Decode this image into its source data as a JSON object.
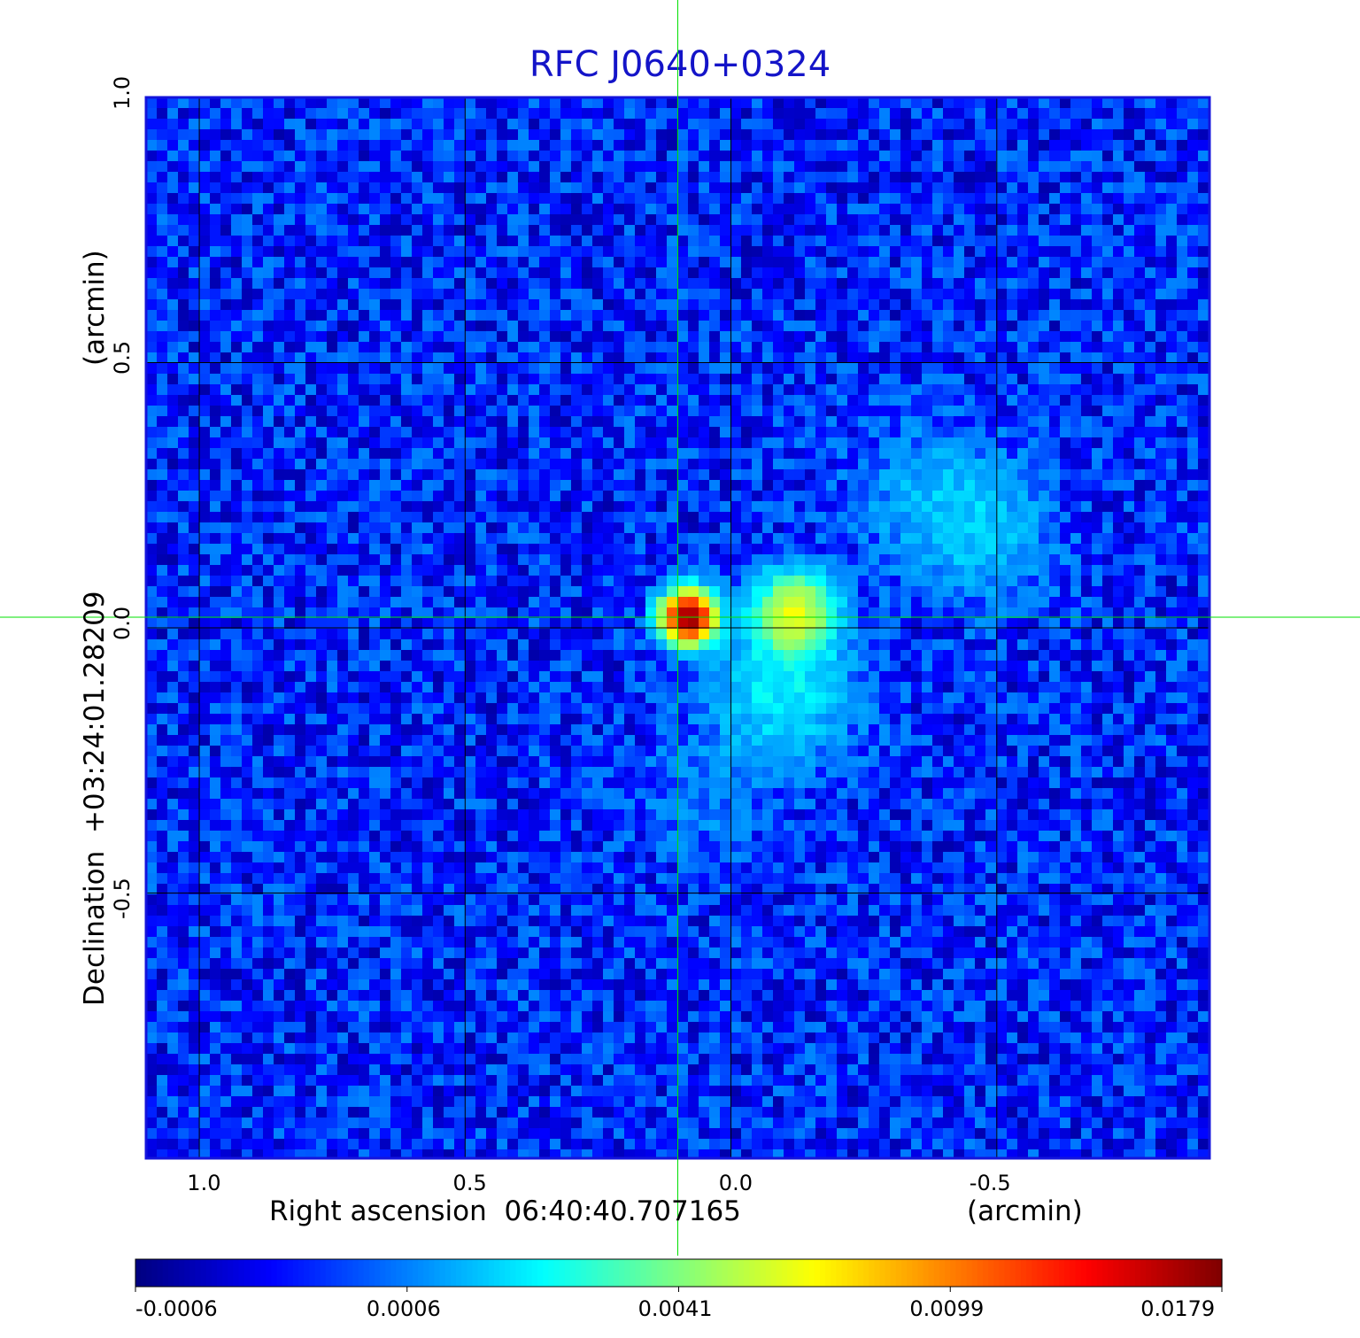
{
  "chart_data": {
    "type": "heatmap",
    "title": "RFC J0640+0324",
    "xlabel": "Right ascension  06:40:40.707165",
    "xunit": "(arcmin)",
    "ylabel": "Declination  +03:24:01.28209",
    "yunit": "(arcmin)",
    "xlim": [
      1.1,
      -0.9
    ],
    "ylim": [
      -1.0,
      1.0
    ],
    "x_ticks": [
      1.0,
      0.5,
      0.0,
      -0.5
    ],
    "x_tick_labels": [
      "1.0",
      "0.5",
      "0.0",
      "-0.5"
    ],
    "y_ticks": [
      1.0,
      0.5,
      0.0,
      -0.5
    ],
    "y_tick_labels": [
      "1.0",
      "0.5",
      "0.0",
      "-0.5"
    ],
    "grid": true,
    "crosshair": {
      "x": 0.1,
      "y": 0.02
    },
    "colormap": "jet",
    "colorbar_ticks": [
      "-0.0006",
      "0.0006",
      "0.0041",
      "0.0099",
      "0.0179"
    ],
    "colorbar_range": [
      -0.0006,
      0.0179
    ],
    "background_level": 0.0002,
    "features": [
      {
        "x": 0.08,
        "y": 0.02,
        "peak": 0.0179
      },
      {
        "x": -0.12,
        "y": 0.03,
        "peak": 0.0062
      },
      {
        "x": -0.1,
        "y": -0.12,
        "peak": 0.0022
      },
      {
        "x": -0.47,
        "y": 0.18,
        "peak": 0.0016
      },
      {
        "x": -0.35,
        "y": 0.26,
        "peak": 0.001
      },
      {
        "x": 0.05,
        "y": -0.32,
        "peak": 0.0008
      }
    ],
    "colors": {
      "title": "#1414c8",
      "frame": "#1414dc",
      "crosshair": "#00e000",
      "grid": "#000000"
    }
  }
}
